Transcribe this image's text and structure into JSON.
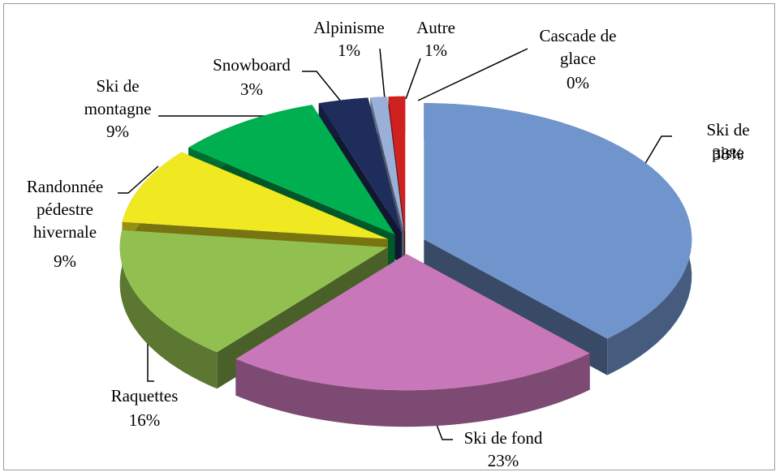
{
  "chart_data": {
    "type": "pie",
    "categories": [
      "Ski de piste",
      "Ski de fond",
      "Raquettes",
      "Randonnée pédestre hivernale",
      "Ski de montagne",
      "Snowboard",
      "Alpinisme",
      "Autre",
      "Cascade de glace"
    ],
    "values": [
      38,
      23,
      16,
      9,
      9,
      3,
      1,
      1,
      0
    ],
    "value_labels": [
      "38%",
      "23%",
      "16%",
      "9%",
      "9%",
      "3%",
      "1%",
      "1%",
      "0%"
    ],
    "colors": [
      "#7094cc",
      "#c878b8",
      "#92c050",
      "#f0e820",
      "#00b050",
      "#1f2d5c",
      "#9ab0d8",
      "#d02020",
      "#f08020"
    ]
  }
}
